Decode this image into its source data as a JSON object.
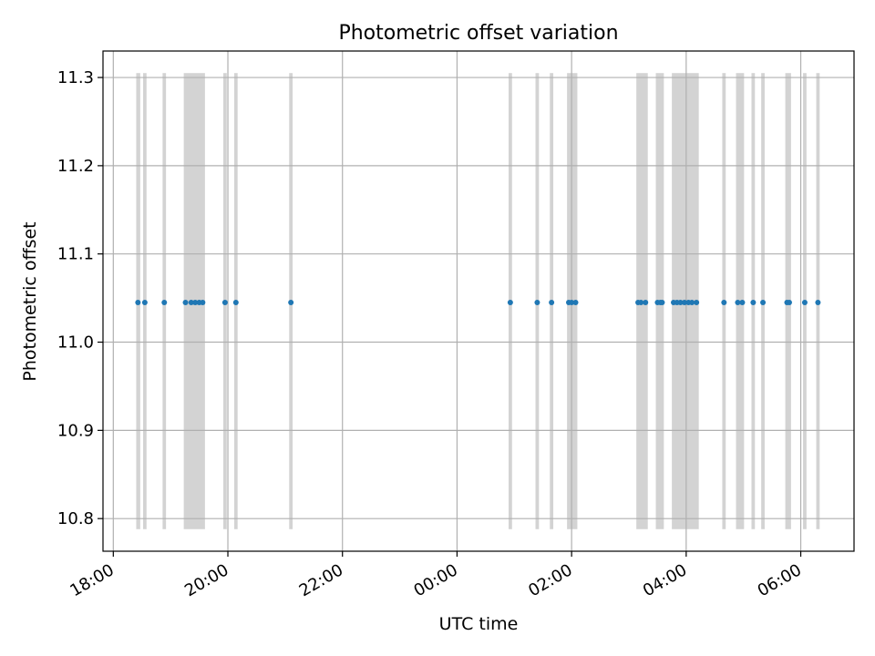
{
  "chart_data": {
    "type": "scatter",
    "title": "Photometric offset variation",
    "xlabel": "UTC time",
    "ylabel": "Photometric offset",
    "x_axis": {
      "type": "time",
      "start": "18:00",
      "ticks": [
        "18:00",
        "20:00",
        "22:00",
        "00:00",
        "02:00",
        "04:00",
        "06:00"
      ],
      "tick_hours": [
        0,
        2,
        4,
        6,
        8,
        10,
        12
      ],
      "range_hours": [
        -0.18,
        12.93
      ],
      "tick_label_rotation": -30
    },
    "y_axis": {
      "ticks": [
        "10.8",
        "10.9",
        "11.0",
        "11.1",
        "11.2",
        "11.3"
      ],
      "tick_values": [
        10.8,
        10.9,
        11.0,
        11.1,
        11.2,
        11.3
      ],
      "range": [
        10.763,
        11.33
      ]
    },
    "grid": true,
    "marker_color": "#1f77b4",
    "band_color": "#d3d3d3",
    "band_range": [
      10.788,
      11.305
    ],
    "y_value": 11.045,
    "points_hours": [
      0.43,
      0.55,
      0.89,
      1.26,
      1.36,
      1.43,
      1.5,
      1.56,
      1.95,
      2.14,
      3.1,
      6.93,
      7.4,
      7.65,
      7.95,
      8.0,
      8.07,
      9.16,
      9.21,
      9.29,
      9.5,
      9.55,
      9.58,
      9.78,
      9.84,
      9.9,
      9.97,
      10.04,
      10.1,
      10.18,
      10.66,
      10.9,
      10.98,
      11.17,
      11.34,
      11.76,
      11.8,
      12.07,
      12.3
    ],
    "bands": [
      {
        "start": 0.4,
        "end": 0.47
      },
      {
        "start": 0.52,
        "end": 0.58
      },
      {
        "start": 0.86,
        "end": 0.92
      },
      {
        "start": 1.23,
        "end": 1.6
      },
      {
        "start": 1.92,
        "end": 1.98
      },
      {
        "start": 2.11,
        "end": 2.17
      },
      {
        "start": 3.07,
        "end": 3.13
      },
      {
        "start": 6.9,
        "end": 6.96
      },
      {
        "start": 7.37,
        "end": 7.43
      },
      {
        "start": 7.62,
        "end": 7.68
      },
      {
        "start": 7.92,
        "end": 8.1
      },
      {
        "start": 9.13,
        "end": 9.33
      },
      {
        "start": 9.47,
        "end": 9.61
      },
      {
        "start": 9.75,
        "end": 10.22
      },
      {
        "start": 10.63,
        "end": 10.69
      },
      {
        "start": 10.87,
        "end": 11.01
      },
      {
        "start": 11.14,
        "end": 11.2
      },
      {
        "start": 11.31,
        "end": 11.37
      },
      {
        "start": 11.73,
        "end": 11.83
      },
      {
        "start": 12.04,
        "end": 12.1
      },
      {
        "start": 12.27,
        "end": 12.33
      }
    ]
  }
}
